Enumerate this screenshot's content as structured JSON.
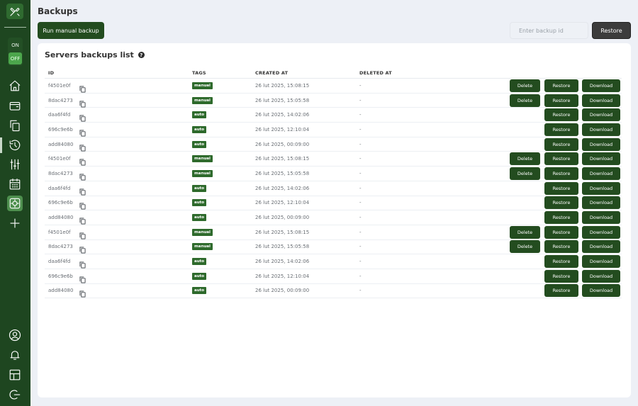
{
  "sidebar": {
    "toggle_on": "ON",
    "toggle_off": "OFF"
  },
  "header": {
    "title": "Backups",
    "run_manual_label": "Run manual backup",
    "backup_input_placeholder": "Enter backup id",
    "restore_label": "Restore"
  },
  "card": {
    "title": "Servers backups list",
    "help": "?"
  },
  "table": {
    "columns": [
      "ID",
      "TAGS",
      "CREATED AT",
      "DELETED AT"
    ],
    "delete_label": "Delete",
    "restore_label": "Restore",
    "download_label": "Download",
    "rows": [
      {
        "id": "f4501e0f",
        "tag": "manual",
        "created": "26 lut 2025, 15:08:15",
        "deleted": "-",
        "can_delete": true
      },
      {
        "id": "8dac4273",
        "tag": "manual",
        "created": "26 lut 2025, 15:05:58",
        "deleted": "-",
        "can_delete": true
      },
      {
        "id": "daa6f4fd",
        "tag": "auto",
        "created": "26 lut 2025, 14:02:06",
        "deleted": "-",
        "can_delete": false
      },
      {
        "id": "696c9e6b",
        "tag": "auto",
        "created": "26 lut 2025, 12:10:04",
        "deleted": "-",
        "can_delete": false
      },
      {
        "id": "add84080",
        "tag": "auto",
        "created": "26 lut 2025, 00:09:00",
        "deleted": "-",
        "can_delete": false
      },
      {
        "id": "f4501e0f",
        "tag": "manual",
        "created": "26 lut 2025, 15:08:15",
        "deleted": "-",
        "can_delete": true
      },
      {
        "id": "8dac4273",
        "tag": "manual",
        "created": "26 lut 2025, 15:05:58",
        "deleted": "-",
        "can_delete": true
      },
      {
        "id": "daa6f4fd",
        "tag": "auto",
        "created": "26 lut 2025, 14:02:06",
        "deleted": "-",
        "can_delete": false
      },
      {
        "id": "696c9e6b",
        "tag": "auto",
        "created": "26 lut 2025, 12:10:04",
        "deleted": "-",
        "can_delete": false
      },
      {
        "id": "add84080",
        "tag": "auto",
        "created": "26 lut 2025, 00:09:00",
        "deleted": "-",
        "can_delete": false
      },
      {
        "id": "f4501e0f",
        "tag": "manual",
        "created": "26 lut 2025, 15:08:15",
        "deleted": "-",
        "can_delete": true
      },
      {
        "id": "8dac4273",
        "tag": "manual",
        "created": "26 lut 2025, 15:05:58",
        "deleted": "-",
        "can_delete": true
      },
      {
        "id": "daa6f4fd",
        "tag": "auto",
        "created": "26 lut 2025, 14:02:06",
        "deleted": "-",
        "can_delete": false
      },
      {
        "id": "696c9e6b",
        "tag": "auto",
        "created": "26 lut 2025, 12:10:04",
        "deleted": "-",
        "can_delete": false
      },
      {
        "id": "add84080",
        "tag": "auto",
        "created": "26 lut 2025, 00:09:00",
        "deleted": "-",
        "can_delete": false
      }
    ]
  }
}
